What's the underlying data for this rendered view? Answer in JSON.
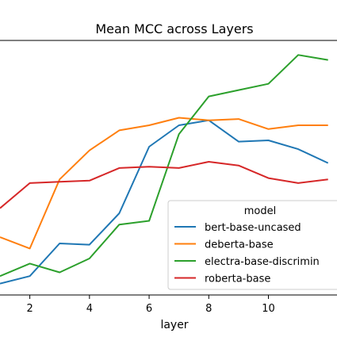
{
  "chart_data": {
    "type": "line",
    "title": "Mean MCC across Layers",
    "xlabel": "layer",
    "ylabel": "",
    "xlim": [
      1,
      12
    ],
    "ylim": [
      0,
      1
    ],
    "x": [
      1,
      2,
      3,
      4,
      5,
      6,
      7,
      8,
      9,
      10,
      11,
      12
    ],
    "xticks": [
      2,
      4,
      6,
      8,
      10
    ],
    "grid": false,
    "legend": {
      "title": "model",
      "placement": "lower-right"
    },
    "series": [
      {
        "name": "bert-base-uncased",
        "color": "#1f77b4",
        "values": [
          0.045,
          0.075,
          0.205,
          0.2,
          0.325,
          0.59,
          0.675,
          0.695,
          0.61,
          0.615,
          0.58,
          0.525
        ]
      },
      {
        "name": "deberta-base",
        "color": "#ff7f0e",
        "values": [
          0.23,
          0.185,
          0.46,
          0.575,
          0.655,
          0.675,
          0.705,
          0.695,
          0.7,
          0.66,
          0.675,
          0.675
        ]
      },
      {
        "name": "electra-base-discrimin",
        "color": "#2ca02c",
        "values": [
          0.075,
          0.125,
          0.09,
          0.145,
          0.28,
          0.295,
          0.64,
          0.79,
          0.815,
          0.84,
          0.955,
          0.935
        ]
      },
      {
        "name": "roberta-base",
        "color": "#d62728",
        "values": [
          0.345,
          0.445,
          0.45,
          0.455,
          0.505,
          0.51,
          0.505,
          0.53,
          0.515,
          0.465,
          0.445,
          0.46
        ]
      }
    ]
  }
}
